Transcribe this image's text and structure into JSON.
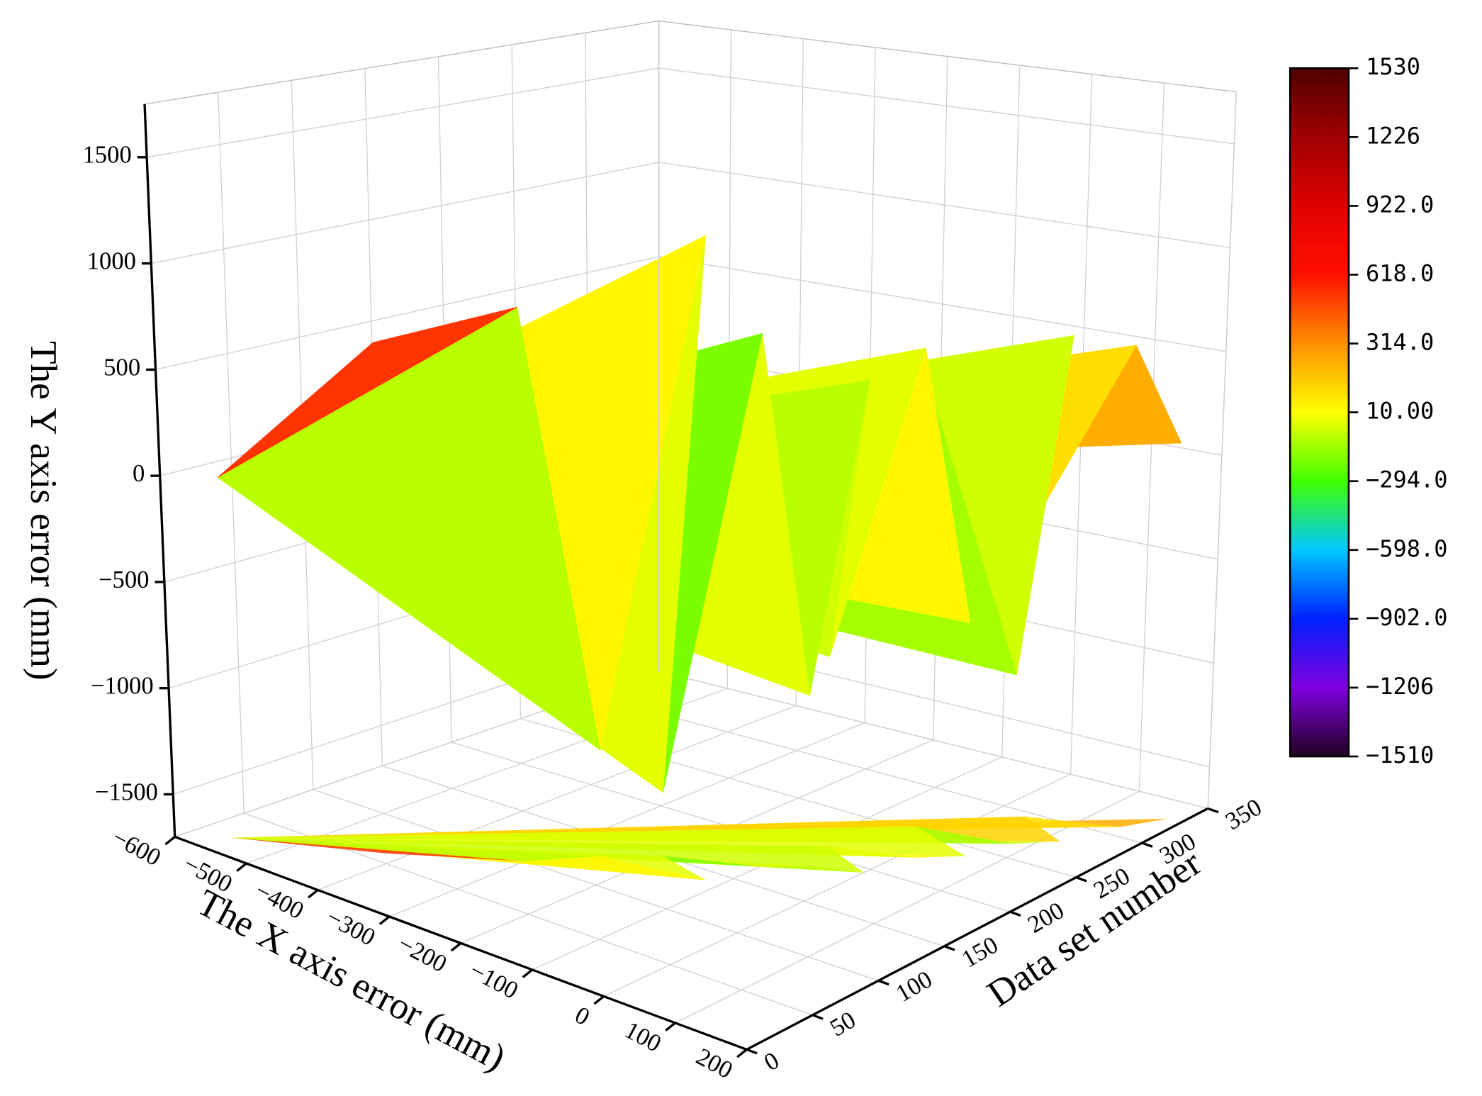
{
  "chart_data": {
    "type": "surface3d",
    "x_label": "The X axis error (mm)",
    "y_label": "Data set number",
    "z_label": "The Y axis error (mm)",
    "xlim": [
      -600,
      200
    ],
    "ylim": [
      0,
      350
    ],
    "zlim": [
      -1700,
      1750
    ],
    "xticks": [
      {
        "value": -600,
        "label": "−600"
      },
      {
        "value": -500,
        "label": "−500"
      },
      {
        "value": -400,
        "label": "−400"
      },
      {
        "value": -300,
        "label": "−300"
      },
      {
        "value": -200,
        "label": "−200"
      },
      {
        "value": -100,
        "label": "−100"
      },
      0,
      100,
      200
    ],
    "yticks": [
      0,
      50,
      100,
      150,
      200,
      250,
      300,
      350
    ],
    "zticks": [
      {
        "value": -1500,
        "label": "−1500"
      },
      {
        "value": -1000,
        "label": "−1000"
      },
      {
        "value": -500,
        "label": "−500"
      },
      0,
      500,
      1000,
      1500
    ],
    "grid": true,
    "surface": {
      "x": [
        -560,
        -420,
        -300,
        -250,
        -120,
        -200,
        -100,
        -60,
        0,
        -80,
        20,
        60,
        -40,
        80,
        120,
        40,
        150,
        180
      ],
      "y": [
        20,
        60,
        100,
        130,
        140,
        150,
        170,
        185,
        195,
        210,
        225,
        240,
        255,
        265,
        280,
        295,
        310,
        330
      ],
      "z": [
        0,
        700,
        900,
        -1200,
        1300,
        -1400,
        800,
        -900,
        600,
        -800,
        700,
        -600,
        500,
        -900,
        700,
        -300,
        600,
        100
      ]
    },
    "colorbar": {
      "clim": [
        -1510,
        1530
      ],
      "colormap": [
        "#200020",
        "#8000e0",
        "#0020ff",
        "#00c8ff",
        "#40ff00",
        "#ffff00",
        "#ff9000",
        "#ff1000",
        "#e00000",
        "#a00000",
        "#500000"
      ],
      "ticks": [
        1530,
        1226,
        {
          "value": 922,
          "label": "922.0"
        },
        {
          "value": 618,
          "label": "618.0"
        },
        {
          "value": 314,
          "label": "314.0"
        },
        {
          "value": 10,
          "label": "10.00"
        },
        {
          "value": -294,
          "label": "−294.0"
        },
        {
          "value": -598,
          "label": "−598.0"
        },
        {
          "value": -902,
          "label": "−902.0"
        },
        {
          "value": -1206,
          "label": "−1206"
        },
        {
          "value": -1510,
          "label": "−1510"
        }
      ]
    }
  }
}
